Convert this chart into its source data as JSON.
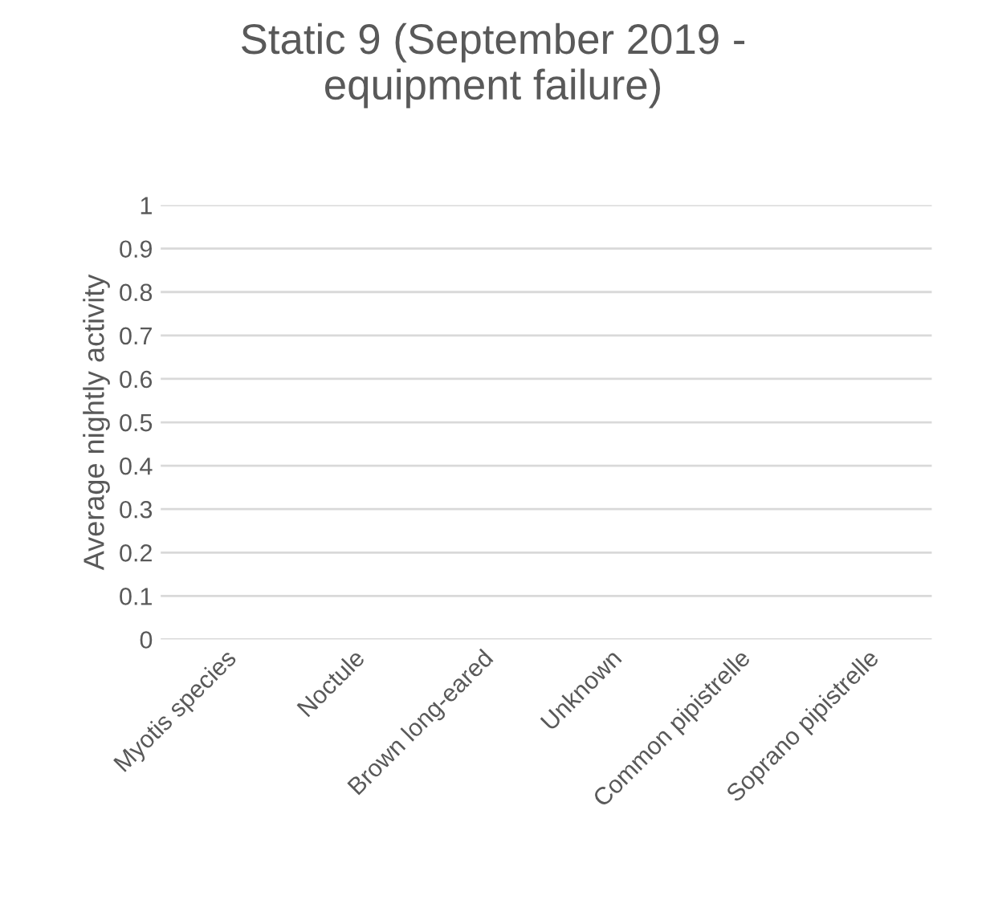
{
  "chart_data": {
    "type": "bar",
    "title": "Static 9 (September 2019 -\nequipment failure)",
    "ylabel": "Average nightly activity",
    "categories": [
      "Myotis species",
      "Noctule",
      "Brown long-eared",
      "Unknown",
      "Common pipistrelle",
      "Soprano pipistrelle"
    ],
    "values": [
      0,
      0,
      0,
      0,
      0,
      0
    ],
    "ylim": [
      0,
      1
    ],
    "yticks": [
      0,
      0.1,
      0.2,
      0.3,
      0.4,
      0.5,
      0.6,
      0.7,
      0.8,
      0.9,
      1
    ],
    "grid": "y"
  }
}
